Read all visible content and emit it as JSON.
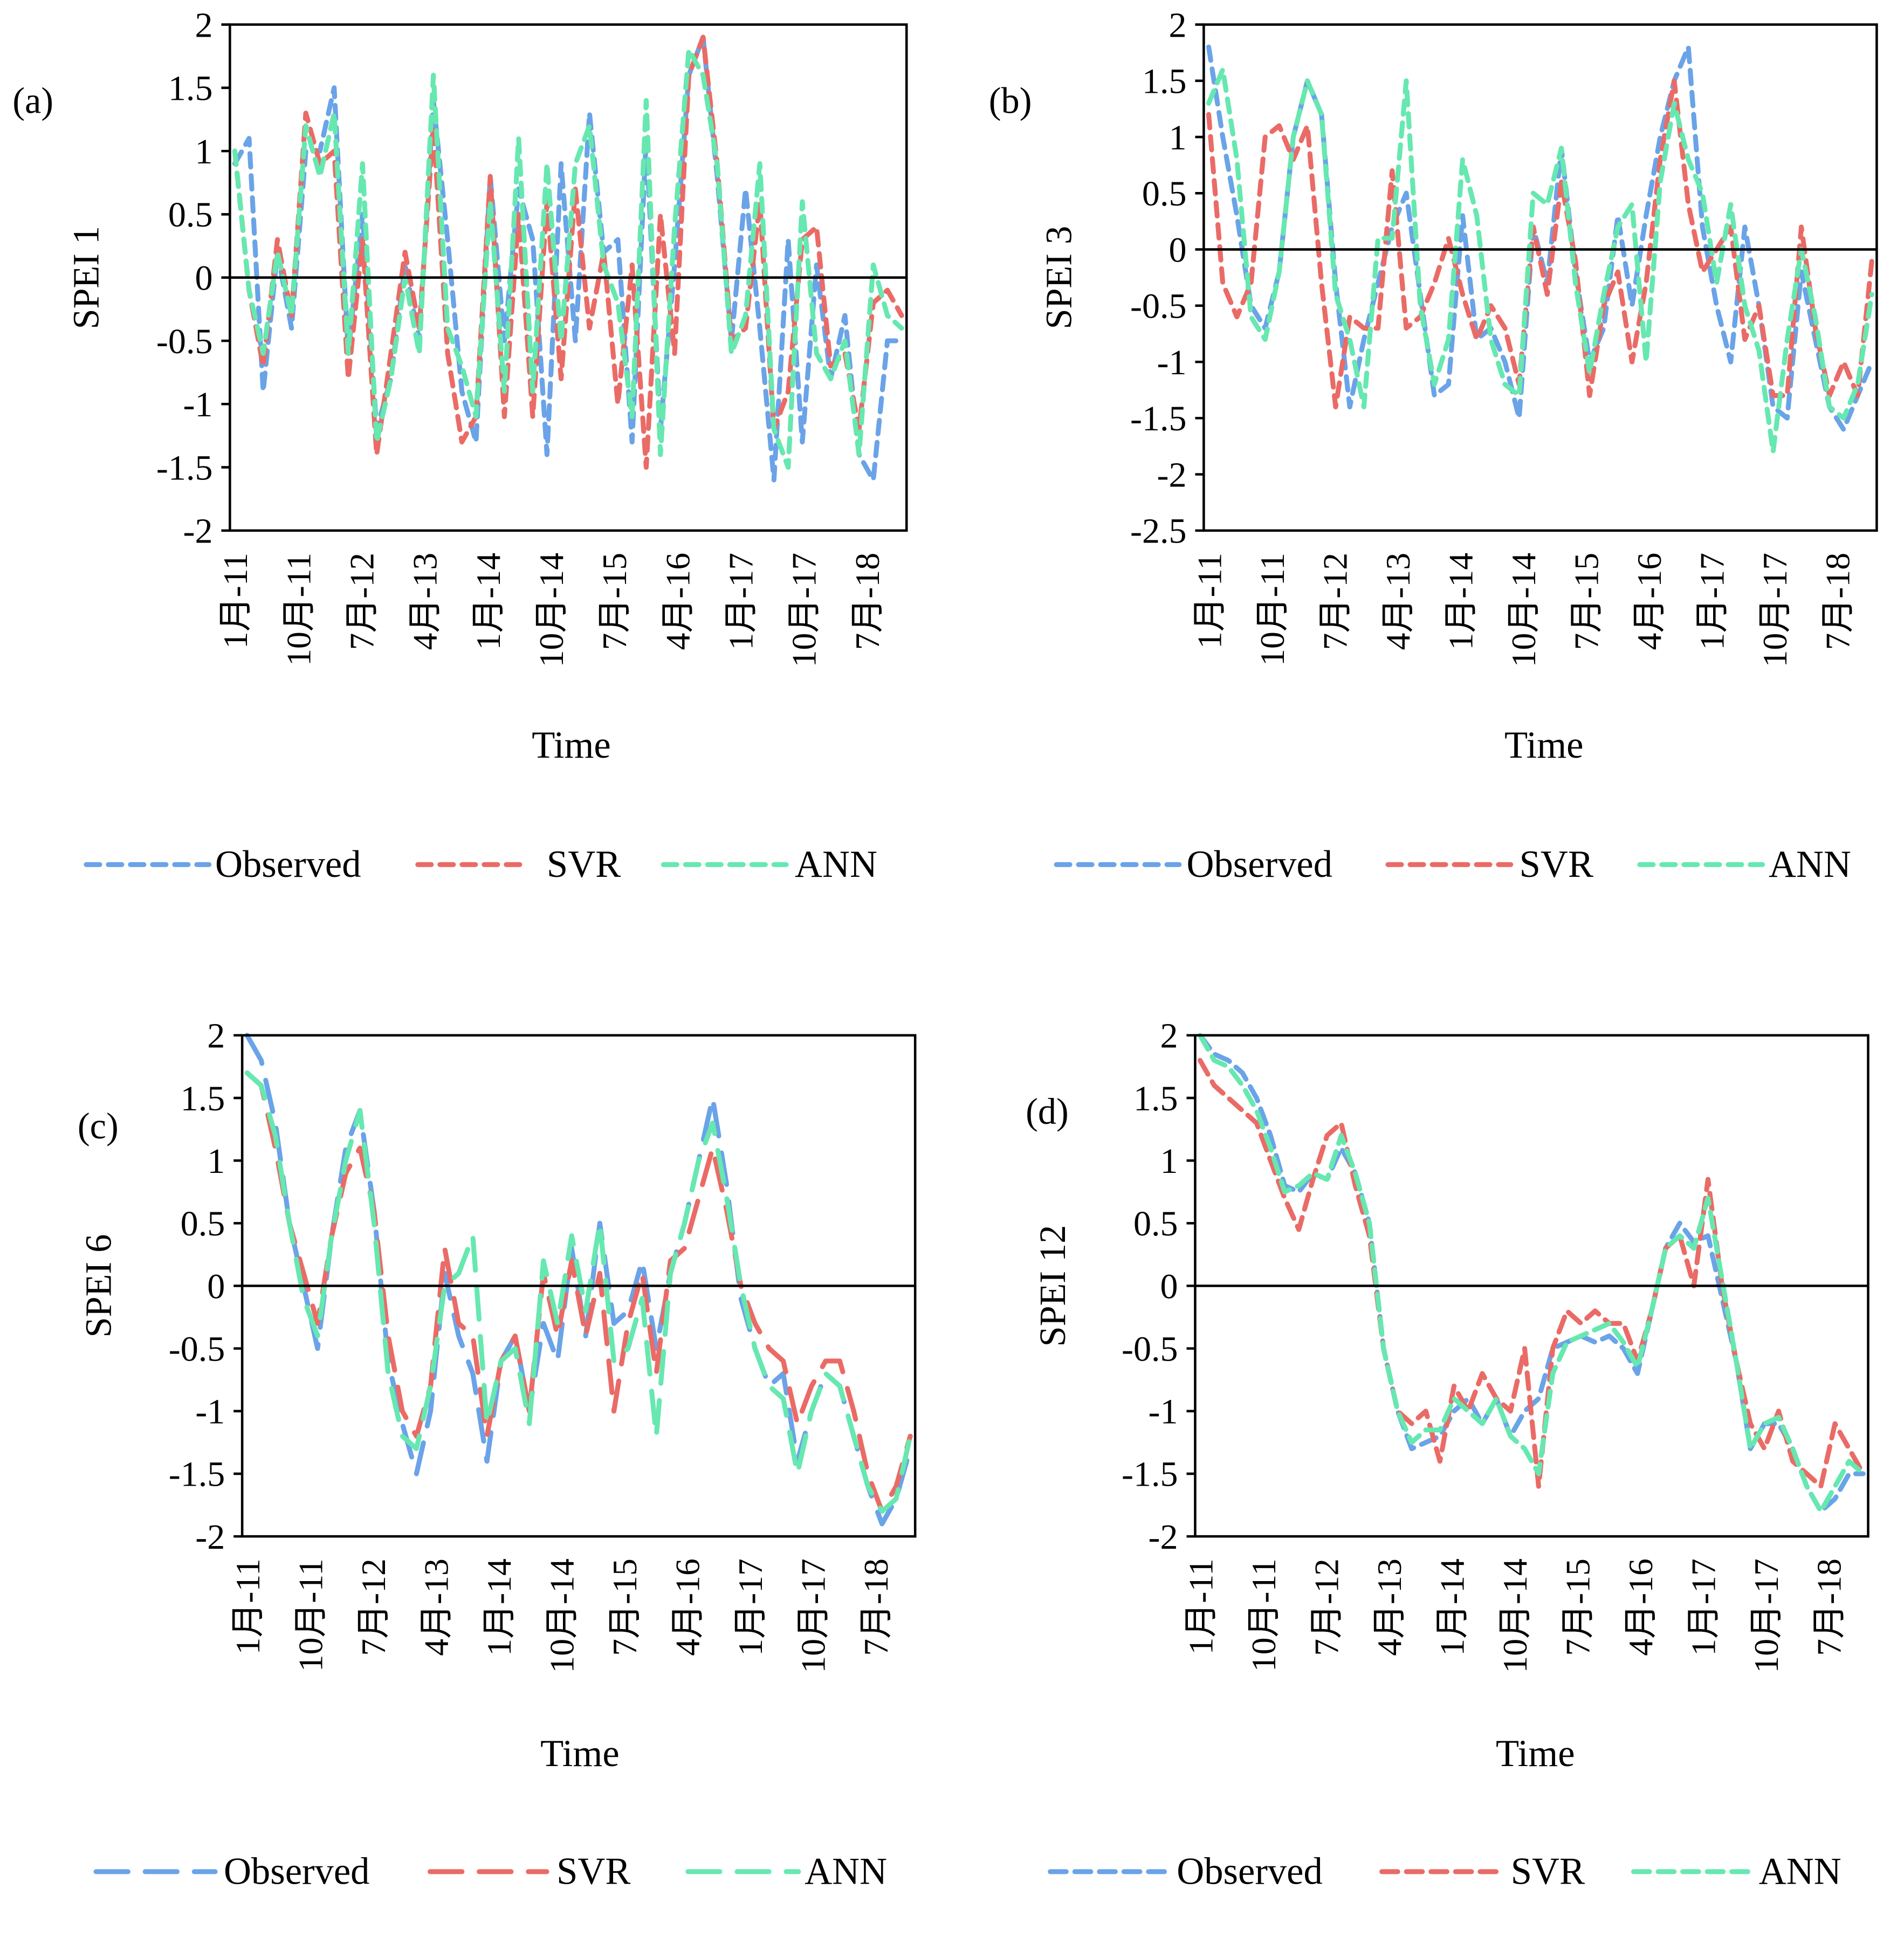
{
  "colors": {
    "Observed": "#6aa3e8",
    "SVR": "#ea6b66",
    "ANN": "#66e8b0"
  },
  "x_tick_labels": [
    "1月-11",
    "10月-11",
    "7月-12",
    "4月-13",
    "1月-14",
    "10月-14",
    "7月-15",
    "4月-16",
    "1月-17",
    "10月-17",
    "7月-18"
  ],
  "x_tick_months": [
    0,
    9,
    18,
    27,
    36,
    45,
    54,
    63,
    72,
    81,
    90
  ],
  "chart_data": [
    {
      "type": "line",
      "panel_label": "(a)",
      "title": "",
      "xlabel": "Time",
      "ylabel": "SPEI 1",
      "ylim": [
        -2,
        2
      ],
      "yticks": [
        "2",
        "1.5",
        "1",
        "0.5",
        "0",
        "-0.5",
        "-1",
        "-1.5",
        "-2"
      ],
      "ytick_values": [
        2,
        1.5,
        1,
        0.5,
        0,
        -0.5,
        -1,
        -1.5,
        -2
      ],
      "x_range_months": [
        0,
        95
      ],
      "x_start": "Jan 2011",
      "sampling": "bimonthly (approx.)",
      "legend": "bottom",
      "grid": false,
      "series": [
        {
          "name": "Observed",
          "values": [
            0.9,
            1.1,
            -0.9,
            0.2,
            -0.4,
            1.0,
            1.0,
            1.5,
            -0.6,
            0.5,
            -1.2,
            -0.8,
            0.1,
            -0.5,
            1.4,
            0.3,
            -0.9,
            -1.3,
            0.8,
            -0.5,
            0.7,
            0.3,
            -1.4,
            0.9,
            -0.5,
            1.3,
            0.2,
            0.3,
            -1.3,
            1.1,
            -1.2,
            0.1,
            1.6,
            1.9,
            0.8,
            -0.5,
            0.7,
            -0.4,
            -1.6,
            0.3,
            -1.3,
            0.1,
            -0.8,
            -0.3,
            -1.4,
            -1.6,
            -0.5,
            -0.5
          ]
        },
        {
          "name": "SVR",
          "values": [
            1.0,
            -0.1,
            -0.7,
            0.3,
            -0.3,
            1.3,
            0.9,
            1.0,
            -0.8,
            0.3,
            -1.4,
            -0.6,
            0.2,
            -0.4,
            1.2,
            -0.6,
            -1.3,
            -1.1,
            0.8,
            -1.1,
            0.5,
            -1.1,
            0.6,
            -0.8,
            0.7,
            -0.4,
            0.2,
            -1.0,
            0.1,
            -1.5,
            0.5,
            -0.6,
            1.6,
            1.9,
            0.9,
            -0.5,
            -0.4,
            0.6,
            -1.2,
            -0.9,
            0.3,
            0.4,
            -0.7,
            -0.6,
            -1.2,
            -0.2,
            -0.1,
            -0.3
          ]
        },
        {
          "name": "ANN",
          "values": [
            1.0,
            -0.1,
            -0.6,
            0.2,
            -0.3,
            1.2,
            0.8,
            1.3,
            -0.6,
            0.9,
            -1.3,
            -0.8,
            0.0,
            -0.6,
            1.6,
            -0.4,
            -0.7,
            -1.1,
            0.6,
            -0.9,
            1.1,
            -0.9,
            0.9,
            -0.5,
            0.9,
            1.2,
            0.1,
            -0.2,
            -1.1,
            1.4,
            -1.4,
            0.4,
            1.8,
            1.6,
            0.9,
            -0.6,
            -0.3,
            0.9,
            -1.2,
            -1.5,
            0.6,
            -0.6,
            -0.8,
            -0.5,
            -1.4,
            0.1,
            -0.3,
            -0.4
          ]
        }
      ]
    },
    {
      "type": "line",
      "panel_label": "(b)",
      "title": "",
      "xlabel": "Time",
      "ylabel": "SPEI 3",
      "ylim": [
        -2.5,
        2
      ],
      "yticks": [
        "2",
        "1.5",
        "1",
        "0.5",
        "0",
        "-0.5",
        "-1",
        "-1.5",
        "-2",
        "-2.5"
      ],
      "ytick_values": [
        2,
        1.5,
        1,
        0.5,
        0,
        -0.5,
        -1,
        -1.5,
        -2,
        -2.5
      ],
      "x_range_months": [
        0,
        95
      ],
      "x_start": "Jan 2011",
      "sampling": "bimonthly (approx.)",
      "legend": "bottom",
      "grid": false,
      "series": [
        {
          "name": "Observed",
          "values": [
            1.8,
            1.0,
            0.3,
            -0.5,
            -0.7,
            -0.2,
            1.0,
            1.5,
            1.2,
            -0.3,
            -1.4,
            -0.8,
            -0.3,
            0.2,
            0.5,
            -0.4,
            -1.3,
            -1.2,
            0.3,
            -0.8,
            -0.7,
            -1.0,
            -1.5,
            0.2,
            -0.3,
            0.9,
            -0.2,
            -1.0,
            -0.7,
            0.3,
            -0.5,
            0.3,
            1.0,
            1.5,
            1.8,
            0.2,
            -0.5,
            -1.0,
            0.2,
            -0.5,
            -1.4,
            -1.5,
            -0.2,
            -0.8,
            -1.4,
            -1.6,
            -1.3,
            -1.0
          ]
        },
        {
          "name": "SVR",
          "values": [
            1.2,
            -0.3,
            -0.6,
            -0.3,
            1.0,
            1.1,
            0.8,
            1.1,
            -0.3,
            -1.4,
            -0.6,
            -0.7,
            -0.7,
            0.7,
            -0.7,
            -0.6,
            -0.3,
            0.1,
            -0.4,
            -0.8,
            -0.5,
            -0.7,
            -1.2,
            0.2,
            -0.4,
            0.6,
            -0.1,
            -1.3,
            -0.5,
            -0.2,
            -1.0,
            -0.3,
            0.8,
            1.5,
            0.4,
            -0.2,
            0.0,
            0.2,
            -0.8,
            -0.5,
            -1.3,
            -1.3,
            0.2,
            -0.7,
            -1.3,
            -1.0,
            -1.3,
            -0.1
          ]
        },
        {
          "name": "ANN",
          "values": [
            1.3,
            1.6,
            0.8,
            -0.6,
            -0.8,
            -0.2,
            1.0,
            1.5,
            1.2,
            -0.4,
            -0.8,
            -1.4,
            0.1,
            0.1,
            1.5,
            -0.5,
            -1.2,
            -0.8,
            0.8,
            0.3,
            -0.8,
            -1.2,
            -1.3,
            0.5,
            0.4,
            0.9,
            -0.3,
            -1.1,
            -0.4,
            0.2,
            0.4,
            -1.0,
            0.6,
            1.3,
            0.8,
            0.5,
            -0.3,
            0.4,
            -0.5,
            -0.9,
            -1.8,
            -0.8,
            0.0,
            -0.6,
            -1.4,
            -1.5,
            -1.2,
            -0.4
          ]
        }
      ]
    },
    {
      "type": "line",
      "panel_label": "(c)",
      "title": "",
      "xlabel": "Time",
      "ylabel": "SPEI 6",
      "ylim": [
        -2,
        2
      ],
      "yticks": [
        "2",
        "1.5",
        "1",
        "0.5",
        "0",
        "-0.5",
        "-1",
        "-1.5",
        "-2"
      ],
      "ytick_values": [
        2,
        1.5,
        1,
        0.5,
        0,
        -0.5,
        -1,
        -1.5,
        -2
      ],
      "x_range_months": [
        0,
        95
      ],
      "x_start": "Jan 2011",
      "sampling": "bimonthly (approx.)",
      "legend": "bottom",
      "grid": false,
      "series": [
        {
          "name": "Observed",
          "values": [
            2.0,
            1.8,
            1.3,
            0.5,
            0.0,
            -0.5,
            0.4,
            1.1,
            1.4,
            0.6,
            -0.6,
            -1.1,
            -1.5,
            -1.0,
            0.1,
            -0.4,
            -0.7,
            -1.4,
            -0.6,
            -0.4,
            -1.0,
            -0.3,
            -0.6,
            0.3,
            -0.4,
            0.5,
            -0.3,
            -0.2,
            0.2,
            -0.5,
            0.1,
            0.5,
            1.0,
            1.5,
            0.8,
            -0.1,
            -0.5,
            -0.8,
            -0.7,
            -1.4,
            -1.0,
            -0.7,
            -0.8,
            -1.2,
            -1.6,
            -1.9,
            -1.7,
            -1.3
          ]
        },
        {
          "name": "SVR",
          "values": [
            1.7,
            1.6,
            1.1,
            0.5,
            0.1,
            -0.3,
            0.4,
            0.9,
            1.1,
            0.6,
            -0.4,
            -1.0,
            -1.2,
            -0.8,
            0.3,
            -0.3,
            -0.4,
            -1.2,
            -0.6,
            -0.4,
            -1.0,
            0.1,
            -0.4,
            0.2,
            -0.4,
            0.1,
            -1.0,
            -0.3,
            0.1,
            -0.7,
            0.2,
            0.3,
            0.7,
            1.1,
            0.6,
            0.0,
            -0.3,
            -0.5,
            -0.6,
            -1.1,
            -0.8,
            -0.6,
            -0.6,
            -1.0,
            -1.5,
            -1.8,
            -1.6,
            -1.2
          ]
        },
        {
          "name": "ANN",
          "values": [
            1.7,
            1.6,
            1.2,
            0.5,
            -0.1,
            -0.4,
            0.4,
            1.0,
            1.4,
            0.5,
            -0.7,
            -1.2,
            -1.3,
            -0.8,
            0.0,
            0.1,
            0.4,
            -1.1,
            -0.6,
            -0.5,
            -1.1,
            0.2,
            -0.3,
            0.4,
            -0.2,
            0.5,
            -0.6,
            -0.5,
            -0.1,
            -1.2,
            0.1,
            0.5,
            1.0,
            1.3,
            0.7,
            0.0,
            -0.5,
            -0.8,
            -0.9,
            -1.5,
            -1.0,
            -0.7,
            -0.8,
            -1.2,
            -1.6,
            -1.8,
            -1.7,
            -1.2
          ]
        }
      ]
    },
    {
      "type": "line",
      "panel_label": "(d)",
      "title": "",
      "xlabel": "Time",
      "ylabel": "SPEI 12",
      "ylim": [
        -2,
        2
      ],
      "yticks": [
        "2",
        "1.5",
        "1",
        "0.5",
        "0",
        "-0.5",
        "-1",
        "-1.5",
        "-2"
      ],
      "ytick_values": [
        2,
        1.5,
        1,
        0.5,
        0,
        -0.5,
        -1,
        -1.5,
        -2
      ],
      "x_range_months": [
        0,
        95
      ],
      "x_start": "Jan 2011",
      "sampling": "bimonthly (approx.)",
      "legend": "bottom",
      "grid": false,
      "series": [
        {
          "name": "Observed",
          "values": [
            2.0,
            1.85,
            1.8,
            1.7,
            1.5,
            1.2,
            0.8,
            0.75,
            0.9,
            0.85,
            1.1,
            0.9,
            0.5,
            -0.5,
            -1.0,
            -1.3,
            -1.25,
            -1.2,
            -1.0,
            -0.9,
            -1.1,
            -0.9,
            -1.2,
            -1.0,
            -0.9,
            -0.5,
            -0.45,
            -0.4,
            -0.45,
            -0.4,
            -0.5,
            -0.7,
            -0.2,
            0.3,
            0.5,
            0.35,
            0.4,
            -0.1,
            -0.6,
            -1.3,
            -1.1,
            -1.1,
            -1.3,
            -1.6,
            -1.8,
            -1.7,
            -1.5,
            -1.5
          ]
        },
        {
          "name": "SVR",
          "values": [
            1.8,
            1.6,
            1.5,
            1.4,
            1.3,
            1.0,
            0.7,
            0.45,
            0.85,
            1.2,
            1.3,
            0.8,
            0.4,
            -0.5,
            -1.0,
            -1.1,
            -1.0,
            -1.4,
            -0.8,
            -1.0,
            -0.7,
            -0.9,
            -1.0,
            -0.5,
            -1.6,
            -0.5,
            -0.2,
            -0.3,
            -0.2,
            -0.3,
            -0.3,
            -0.6,
            -0.2,
            0.3,
            0.4,
            0.0,
            0.85,
            0.0,
            -0.6,
            -1.1,
            -1.3,
            -1.0,
            -1.4,
            -1.5,
            -1.6,
            -1.1,
            -1.3,
            -1.5
          ]
        },
        {
          "name": "ANN",
          "values": [
            2.0,
            1.8,
            1.75,
            1.6,
            1.4,
            1.1,
            0.75,
            0.8,
            0.9,
            0.85,
            1.2,
            0.9,
            0.5,
            -0.5,
            -1.0,
            -1.25,
            -1.15,
            -1.15,
            -0.9,
            -1.0,
            -1.1,
            -0.9,
            -1.2,
            -1.3,
            -1.5,
            -0.7,
            -0.45,
            -0.4,
            -0.35,
            -0.3,
            -0.45,
            -0.65,
            -0.2,
            0.3,
            0.4,
            0.3,
            0.7,
            0.05,
            -0.6,
            -1.3,
            -1.1,
            -1.05,
            -1.3,
            -1.6,
            -1.8,
            -1.6,
            -1.4,
            -1.5
          ]
        }
      ]
    }
  ]
}
